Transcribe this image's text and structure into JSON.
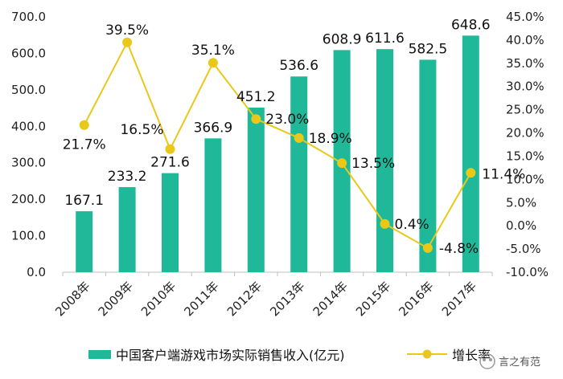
{
  "chart_data": {
    "type": "bar+line",
    "categories": [
      "2008年",
      "2009年",
      "2010年",
      "2011年",
      "2012年",
      "2013年",
      "2014年",
      "2015年",
      "2016年",
      "2017年"
    ],
    "series": [
      {
        "name": "中国客户端游戏市场实际销售收入(亿元)",
        "type": "bar",
        "axis": "left",
        "values": [
          167.1,
          233.2,
          271.6,
          366.9,
          451.2,
          536.6,
          608.9,
          611.6,
          582.5,
          648.6
        ],
        "labels": [
          "167.1",
          "233.2",
          "271.6",
          "366.9",
          "451.2",
          "536.6",
          "608.9",
          "611.6",
          "582.5",
          "648.6"
        ]
      },
      {
        "name": "增长率",
        "type": "line",
        "axis": "right",
        "values": [
          21.7,
          39.5,
          16.5,
          35.1,
          23.0,
          18.9,
          13.5,
          0.4,
          -4.8,
          11.4
        ],
        "labels": [
          "21.7%",
          "39.5%",
          "16.5%",
          "35.1%",
          "23.0%",
          "18.9%",
          "13.5%",
          "0.4%",
          "-4.8%",
          "11.4%"
        ]
      }
    ],
    "y_left": {
      "range": [
        0,
        700
      ],
      "ticks": [
        "0.0",
        "100.0",
        "200.0",
        "300.0",
        "400.0",
        "500.0",
        "600.0",
        "700.0"
      ]
    },
    "y_right": {
      "range": [
        -10,
        45
      ],
      "ticks": [
        "-10.0%",
        "-5.0%",
        "0.0%",
        "5.0%",
        "10.0%",
        "15.0%",
        "20.0%",
        "25.0%",
        "30.0%",
        "35.0%",
        "40.0%",
        "45.0%"
      ]
    },
    "grid": false,
    "legend_position": "bottom",
    "colors": {
      "bar": "#1fb99a",
      "line": "#e9c81a",
      "marker": "#e9c81a",
      "axis": "#bfbfbf"
    }
  },
  "watermark": {
    "text": "言之有范"
  }
}
